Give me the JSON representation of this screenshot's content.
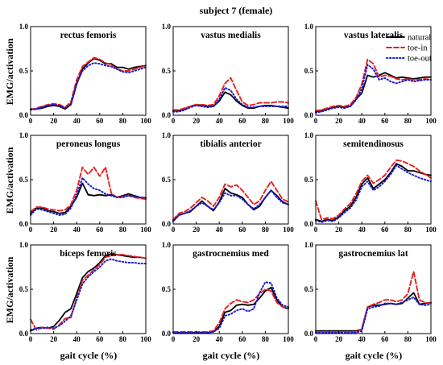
{
  "chart_data": {
    "type": "line",
    "title": "subject 7 (female)",
    "xlabel": "gait cycle (%)",
    "ylabel": "EMG/activation",
    "xlim": [
      0,
      100
    ],
    "ylim": [
      0,
      1.0
    ],
    "xticks": [
      "0",
      "20",
      "40",
      "60",
      "80",
      "100"
    ],
    "yticks": [
      "0.0",
      "0.5",
      "1.0"
    ],
    "grid": false,
    "legend": {
      "placement": "top-right of the top-right panel",
      "entries": [
        {
          "name": "natural",
          "color": "#000000",
          "style": "solid"
        },
        {
          "name": "toe-in",
          "color": "#e8201f",
          "style": "dashed"
        },
        {
          "name": "toe-out",
          "color": "#1a1ad6",
          "style": "dotted"
        }
      ]
    },
    "panels": [
      {
        "title": "rectus femoris",
        "x": [
          0,
          5,
          10,
          15,
          20,
          25,
          30,
          35,
          40,
          45,
          50,
          55,
          60,
          65,
          70,
          75,
          80,
          85,
          90,
          95,
          100
        ],
        "series": [
          {
            "name": "natural",
            "values": [
              0.07,
              0.07,
              0.08,
              0.1,
              0.11,
              0.1,
              0.07,
              0.12,
              0.35,
              0.52,
              0.59,
              0.64,
              0.62,
              0.58,
              0.58,
              0.54,
              0.54,
              0.52,
              0.54,
              0.55,
              0.56
            ]
          },
          {
            "name": "toe-in",
            "values": [
              0.06,
              0.08,
              0.1,
              0.12,
              0.13,
              0.12,
              0.09,
              0.15,
              0.4,
              0.55,
              0.6,
              0.65,
              0.63,
              0.59,
              0.57,
              0.52,
              0.5,
              0.5,
              0.52,
              0.54,
              0.56
            ]
          },
          {
            "name": "toe-out",
            "values": [
              0.06,
              0.07,
              0.09,
              0.11,
              0.12,
              0.11,
              0.08,
              0.13,
              0.36,
              0.5,
              0.56,
              0.59,
              0.58,
              0.56,
              0.55,
              0.52,
              0.49,
              0.48,
              0.5,
              0.52,
              0.54
            ]
          }
        ]
      },
      {
        "title": "vastus medialis",
        "x": [
          0,
          5,
          10,
          15,
          20,
          25,
          30,
          35,
          40,
          45,
          50,
          55,
          60,
          65,
          70,
          75,
          80,
          85,
          90,
          95,
          100
        ],
        "series": [
          {
            "name": "natural",
            "values": [
              0.05,
              0.05,
              0.07,
              0.1,
              0.12,
              0.11,
              0.1,
              0.1,
              0.16,
              0.26,
              0.23,
              0.16,
              0.11,
              0.08,
              0.08,
              0.1,
              0.11,
              0.11,
              0.1,
              0.09,
              0.08
            ]
          },
          {
            "name": "toe-in",
            "values": [
              0.06,
              0.06,
              0.08,
              0.1,
              0.12,
              0.12,
              0.11,
              0.12,
              0.22,
              0.36,
              0.42,
              0.28,
              0.15,
              0.11,
              0.12,
              0.14,
              0.14,
              0.14,
              0.15,
              0.15,
              0.14
            ]
          },
          {
            "name": "toe-out",
            "values": [
              0.04,
              0.04,
              0.06,
              0.09,
              0.11,
              0.1,
              0.09,
              0.1,
              0.18,
              0.31,
              0.28,
              0.18,
              0.12,
              0.09,
              0.09,
              0.1,
              0.1,
              0.1,
              0.1,
              0.1,
              0.1
            ]
          }
        ]
      },
      {
        "title": "vastus lateralis",
        "x": [
          0,
          5,
          10,
          15,
          20,
          25,
          30,
          35,
          40,
          45,
          50,
          55,
          60,
          65,
          70,
          75,
          80,
          85,
          90,
          95,
          100
        ],
        "series": [
          {
            "name": "natural",
            "values": [
              0.04,
              0.05,
              0.07,
              0.09,
              0.1,
              0.09,
              0.1,
              0.18,
              0.25,
              0.45,
              0.43,
              0.45,
              0.48,
              0.45,
              0.42,
              0.43,
              0.42,
              0.41,
              0.42,
              0.43,
              0.43
            ]
          },
          {
            "name": "toe-in",
            "values": [
              0.05,
              0.06,
              0.08,
              0.1,
              0.11,
              0.1,
              0.12,
              0.2,
              0.35,
              0.63,
              0.58,
              0.43,
              0.45,
              0.44,
              0.41,
              0.4,
              0.41,
              0.4,
              0.4,
              0.41,
              0.4
            ]
          },
          {
            "name": "toe-out",
            "values": [
              0.03,
              0.04,
              0.06,
              0.08,
              0.09,
              0.08,
              0.1,
              0.17,
              0.3,
              0.57,
              0.52,
              0.4,
              0.42,
              0.38,
              0.36,
              0.38,
              0.4,
              0.38,
              0.39,
              0.4,
              0.4
            ]
          }
        ]
      },
      {
        "title": "peroneus longus",
        "x": [
          0,
          5,
          10,
          15,
          20,
          25,
          30,
          35,
          40,
          45,
          50,
          55,
          60,
          65,
          70,
          75,
          80,
          85,
          90,
          95,
          100
        ],
        "series": [
          {
            "name": "natural",
            "values": [
              0.12,
              0.18,
              0.18,
              0.15,
              0.14,
              0.12,
              0.13,
              0.2,
              0.3,
              0.46,
              0.33,
              0.32,
              0.33,
              0.32,
              0.33,
              0.3,
              0.32,
              0.34,
              0.32,
              0.3,
              0.29
            ]
          },
          {
            "name": "toe-in",
            "values": [
              0.14,
              0.19,
              0.19,
              0.17,
              0.16,
              0.15,
              0.16,
              0.22,
              0.38,
              0.64,
              0.56,
              0.64,
              0.54,
              0.64,
              0.35,
              0.3,
              0.31,
              0.32,
              0.3,
              0.29,
              0.28
            ]
          },
          {
            "name": "toe-out",
            "values": [
              0.1,
              0.17,
              0.16,
              0.14,
              0.12,
              0.1,
              0.11,
              0.18,
              0.33,
              0.52,
              0.45,
              0.4,
              0.38,
              0.34,
              0.32,
              0.3,
              0.3,
              0.32,
              0.31,
              0.3,
              0.3
            ]
          }
        ]
      },
      {
        "title": "tibialis anterior",
        "x": [
          0,
          5,
          10,
          15,
          20,
          25,
          30,
          35,
          40,
          45,
          50,
          55,
          60,
          65,
          70,
          75,
          80,
          85,
          90,
          95,
          100
        ],
        "series": [
          {
            "name": "natural",
            "values": [
              0.03,
              0.1,
              0.12,
              0.14,
              0.2,
              0.26,
              0.2,
              0.15,
              0.25,
              0.4,
              0.35,
              0.33,
              0.3,
              0.22,
              0.16,
              0.2,
              0.3,
              0.38,
              0.32,
              0.25,
              0.22
            ]
          },
          {
            "name": "toe-in",
            "values": [
              0.05,
              0.12,
              0.14,
              0.18,
              0.24,
              0.3,
              0.26,
              0.2,
              0.3,
              0.45,
              0.42,
              0.44,
              0.38,
              0.3,
              0.22,
              0.26,
              0.38,
              0.48,
              0.38,
              0.28,
              0.25
            ]
          },
          {
            "name": "toe-out",
            "values": [
              0.04,
              0.1,
              0.12,
              0.15,
              0.2,
              0.24,
              0.2,
              0.16,
              0.24,
              0.35,
              0.32,
              0.32,
              0.28,
              0.22,
              0.17,
              0.22,
              0.3,
              0.38,
              0.3,
              0.24,
              0.22
            ]
          }
        ]
      },
      {
        "title": "semitendinosus",
        "x": [
          0,
          5,
          10,
          15,
          20,
          25,
          30,
          35,
          40,
          45,
          50,
          55,
          60,
          65,
          70,
          75,
          80,
          85,
          90,
          95,
          100
        ],
        "series": [
          {
            "name": "natural",
            "values": [
              0.05,
              0.03,
              0.05,
              0.04,
              0.08,
              0.15,
              0.2,
              0.3,
              0.45,
              0.52,
              0.4,
              0.45,
              0.5,
              0.58,
              0.68,
              0.65,
              0.6,
              0.6,
              0.58,
              0.56,
              0.55
            ]
          },
          {
            "name": "toe-in",
            "values": [
              0.26,
              0.05,
              0.07,
              0.06,
              0.1,
              0.17,
              0.23,
              0.34,
              0.48,
              0.55,
              0.46,
              0.5,
              0.55,
              0.64,
              0.72,
              0.71,
              0.68,
              0.65,
              0.6,
              0.56,
              0.52
            ]
          },
          {
            "name": "toe-out",
            "values": [
              0.04,
              0.02,
              0.04,
              0.03,
              0.07,
              0.13,
              0.18,
              0.27,
              0.42,
              0.48,
              0.38,
              0.42,
              0.48,
              0.56,
              0.66,
              0.62,
              0.58,
              0.55,
              0.52,
              0.5,
              0.48
            ]
          }
        ]
      },
      {
        "title": "biceps femoris",
        "x": [
          0,
          5,
          10,
          15,
          20,
          25,
          30,
          35,
          40,
          45,
          50,
          55,
          60,
          65,
          70,
          75,
          80,
          85,
          90,
          95,
          100
        ],
        "series": [
          {
            "name": "natural",
            "values": [
              0.03,
              0.06,
              0.07,
              0.06,
              0.08,
              0.15,
              0.24,
              0.28,
              0.45,
              0.63,
              0.7,
              0.74,
              0.8,
              0.88,
              0.9,
              0.89,
              0.88,
              0.87,
              0.86,
              0.86,
              0.85
            ]
          },
          {
            "name": "toe-in",
            "values": [
              0.16,
              0.04,
              0.07,
              0.06,
              0.05,
              0.1,
              0.17,
              0.18,
              0.4,
              0.6,
              0.66,
              0.72,
              0.78,
              0.86,
              0.88,
              0.89,
              0.89,
              0.88,
              0.87,
              0.86,
              0.85
            ]
          },
          {
            "name": "toe-out",
            "values": [
              0.04,
              0.06,
              0.06,
              0.07,
              0.06,
              0.09,
              0.14,
              0.2,
              0.38,
              0.56,
              0.64,
              0.7,
              0.75,
              0.82,
              0.84,
              0.82,
              0.81,
              0.8,
              0.8,
              0.79,
              0.79
            ]
          }
        ]
      },
      {
        "title": "gastrocnemius med",
        "x": [
          0,
          5,
          10,
          15,
          20,
          25,
          30,
          35,
          40,
          45,
          50,
          55,
          60,
          65,
          70,
          75,
          80,
          85,
          90,
          95,
          100
        ],
        "series": [
          {
            "name": "natural",
            "values": [
              0.01,
              0.01,
              0.01,
              0.01,
              0.01,
              0.01,
              0.01,
              0.02,
              0.08,
              0.24,
              0.26,
              0.32,
              0.33,
              0.32,
              0.33,
              0.4,
              0.48,
              0.52,
              0.38,
              0.3,
              0.28
            ]
          },
          {
            "name": "toe-in",
            "values": [
              0.02,
              0.02,
              0.02,
              0.02,
              0.02,
              0.02,
              0.02,
              0.03,
              0.12,
              0.28,
              0.34,
              0.38,
              0.36,
              0.35,
              0.38,
              0.45,
              0.5,
              0.48,
              0.35,
              0.3,
              0.29
            ]
          },
          {
            "name": "toe-out",
            "values": [
              0.01,
              0.01,
              0.01,
              0.01,
              0.01,
              0.01,
              0.01,
              0.02,
              0.06,
              0.2,
              0.22,
              0.26,
              0.28,
              0.25,
              0.28,
              0.46,
              0.58,
              0.57,
              0.4,
              0.32,
              0.3
            ]
          }
        ]
      },
      {
        "title": "gastrocnemius lat",
        "x": [
          0,
          5,
          10,
          15,
          20,
          25,
          30,
          35,
          40,
          45,
          50,
          55,
          60,
          65,
          70,
          75,
          80,
          85,
          90,
          95,
          100
        ],
        "series": [
          {
            "name": "natural",
            "values": [
              0.03,
              0.03,
              0.03,
              0.03,
              0.03,
              0.03,
              0.03,
              0.03,
              0.05,
              0.3,
              0.32,
              0.32,
              0.33,
              0.34,
              0.33,
              0.34,
              0.4,
              0.46,
              0.33,
              0.34,
              0.35
            ]
          },
          {
            "name": "toe-in",
            "values": [
              0.02,
              0.02,
              0.02,
              0.02,
              0.02,
              0.02,
              0.02,
              0.02,
              0.05,
              0.3,
              0.33,
              0.35,
              0.38,
              0.38,
              0.36,
              0.38,
              0.45,
              0.7,
              0.38,
              0.35,
              0.34
            ]
          },
          {
            "name": "toe-out",
            "values": [
              0.01,
              0.01,
              0.01,
              0.01,
              0.01,
              0.01,
              0.01,
              0.01,
              0.03,
              0.28,
              0.3,
              0.31,
              0.34,
              0.34,
              0.33,
              0.35,
              0.38,
              0.41,
              0.33,
              0.32,
              0.33
            ]
          }
        ]
      }
    ]
  }
}
